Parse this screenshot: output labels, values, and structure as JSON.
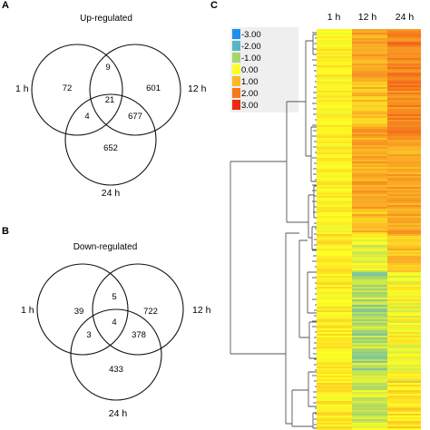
{
  "panels": {
    "a": {
      "letter": "A",
      "title": "Up-regulated",
      "sets": {
        "one": "1 h",
        "two": "12 h",
        "three": "24 h"
      },
      "counts": {
        "only_1h": "72",
        "only_12h": "601",
        "only_24h": "652",
        "h1_h12": "9",
        "h1_h24": "4",
        "h12_h24": "677",
        "all": "21"
      }
    },
    "b": {
      "letter": "B",
      "title": "Down-regulated",
      "sets": {
        "one": "1 h",
        "two": "12 h",
        "three": "24 h"
      },
      "counts": {
        "only_1h": "39",
        "only_12h": "722",
        "only_24h": "433",
        "h1_h12": "5",
        "h1_h24": "3",
        "h12_h24": "378",
        "all": "4"
      }
    },
    "c": {
      "letter": "C",
      "columns": [
        "1 h",
        "12 h",
        "24 h"
      ],
      "legend": [
        {
          "label": "-3.00",
          "color": "#1e8ff0"
        },
        {
          "label": "-2.00",
          "color": "#57b5c8"
        },
        {
          "label": "-1.00",
          "color": "#a8d66a"
        },
        {
          "label": "0.00",
          "color": "#ffff22"
        },
        {
          "label": "1.00",
          "color": "#fbb726"
        },
        {
          "label": "2.00",
          "color": "#f47a1c"
        },
        {
          "label": "3.00",
          "color": "#ec2a12"
        }
      ]
    }
  }
}
